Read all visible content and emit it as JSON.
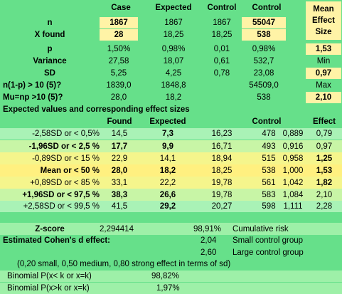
{
  "header": {
    "case": "Case",
    "expected": "Expected",
    "control1": "Control",
    "control2": "Control",
    "mean_l1": "Mean",
    "mean_l2": "Effect",
    "mean_l3": "Size"
  },
  "rows_top": [
    {
      "label": "n",
      "case": "1867",
      "expected": "1867",
      "control1": "1867",
      "control2": "55047",
      "right": ""
    },
    {
      "label": "X found",
      "case": "28",
      "expected": "18,25",
      "control1": "18,25",
      "control2": "538",
      "right": ""
    },
    {
      "label": "p",
      "case": "1,50%",
      "expected": "0,98%",
      "control1": "0,01",
      "control2": "0,98%",
      "right": "1,53"
    },
    {
      "label": "Variance",
      "case": "27,58",
      "expected": "18,07",
      "control1": "0,61",
      "control2": "532,7",
      "right": "Min"
    },
    {
      "label": "SD",
      "case": "5,25",
      "expected": "4,25",
      "control1": "0,78",
      "control2": "23,08",
      "right": "0,97"
    },
    {
      "label": "n(1-p) > 10 (5)?",
      "case": "1839,0",
      "expected": "1848,8",
      "control1": "",
      "control2": "54509,0",
      "right": "Max"
    },
    {
      "label": "Mu=np >10 (5)?",
      "case": "28,0",
      "expected": "18,2",
      "control1": "",
      "control2": "538",
      "right": "2,10"
    }
  ],
  "section_title": "Expected values and corresponding effect sizes",
  "sub_header": {
    "found": "Found",
    "expected": "Expected",
    "control": "Control",
    "effect": "Effect"
  },
  "rows_effect": [
    {
      "label": "-2,58SD or < 0,5%",
      "found": "14,5",
      "expected": "7,3",
      "c1": "16,23",
      "c2": "478",
      "ratio": "0,889",
      "effect": "0,79"
    },
    {
      "label": "-1,96SD or < 2,5 %",
      "found": "17,7",
      "expected": "9,9",
      "c1": "16,71",
      "c2": "493",
      "ratio": "0,916",
      "effect": "0,97"
    },
    {
      "label": "-0,89SD or < 15 %",
      "found": "22,9",
      "expected": "14,1",
      "c1": "18,94",
      "c2": "515",
      "ratio": "0,958",
      "effect": "1,25"
    },
    {
      "label": "Mean  or < 50 %",
      "found": "28,0",
      "expected": "18,2",
      "c1": "18,25",
      "c2": "538",
      "ratio": "1,000",
      "effect": "1,53"
    },
    {
      "label": "+0,89SD or < 85 %",
      "found": "33,1",
      "expected": "22,2",
      "c1": "19,78",
      "c2": "561",
      "ratio": "1,042",
      "effect": "1,82"
    },
    {
      "label": "+1,96SD or < 97,5 %",
      "found": "38,3",
      "expected": "26,6",
      "c1": "19,78",
      "c2": "583",
      "ratio": "1,084",
      "effect": "2,10"
    },
    {
      "label": "+2,58SD or < 99,5 %",
      "found": "41,5",
      "expected": "29,2",
      "c1": "20,27",
      "c2": "598",
      "ratio": "1,111",
      "effect": "2,28"
    }
  ],
  "zscore": {
    "label": "Z-score",
    "value": "2,294414",
    "pct": "98,91%",
    "text": "Cumulative risk"
  },
  "cohen": {
    "title": "Estimated Cohen's d effect:",
    "small_val": "2,04",
    "small_text": "Small control group",
    "large_val": "2,60",
    "large_text": "Large control group",
    "note": "(0,20 small, 0,50 medium, 0,80 strong effect in terms of sd)"
  },
  "binomial": [
    {
      "label": "Binomial P(x< k or x=k)",
      "value": "98,82%"
    },
    {
      "label": "Binomial P(x>k or x=k)",
      "value": "1,97%"
    }
  ]
}
